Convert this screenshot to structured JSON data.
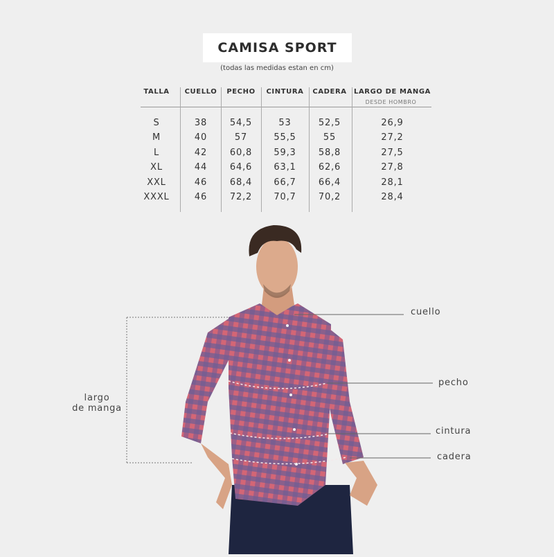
{
  "title": "CAMISA SPORT",
  "subtitle": "(todas las medidas estan en cm)",
  "table": {
    "headers": [
      "TALLA",
      "CUELLO",
      "PECHO",
      "CINTURA",
      "CADERA",
      "LARGO DE MANGA"
    ],
    "header_sub": "DESDE HOMBRO",
    "rows": [
      [
        "S",
        "38",
        "54,5",
        "53",
        "52,5",
        "26,9"
      ],
      [
        "M",
        "40",
        "57",
        "55,5",
        "55",
        "27,2"
      ],
      [
        "L",
        "42",
        "60,8",
        "59,3",
        "58,8",
        "27,5"
      ],
      [
        "XL",
        "44",
        "64,6",
        "63,1",
        "62,6",
        "27,8"
      ],
      [
        "XXL",
        "46",
        "68,4",
        "66,7",
        "66,4",
        "28,1"
      ],
      [
        "XXXL",
        "46",
        "72,2",
        "70,7",
        "70,2",
        "28,4"
      ]
    ]
  },
  "labels": {
    "cuello": "cuello",
    "pecho": "pecho",
    "cintura": "cintura",
    "cadera": "cadera",
    "largo_line1": "largo",
    "largo_line2": "de manga"
  },
  "colors": {
    "background": "#efefef",
    "shirt_red": "#c95a6e",
    "shirt_blue": "#5a5f96",
    "jeans": "#1e2540"
  }
}
